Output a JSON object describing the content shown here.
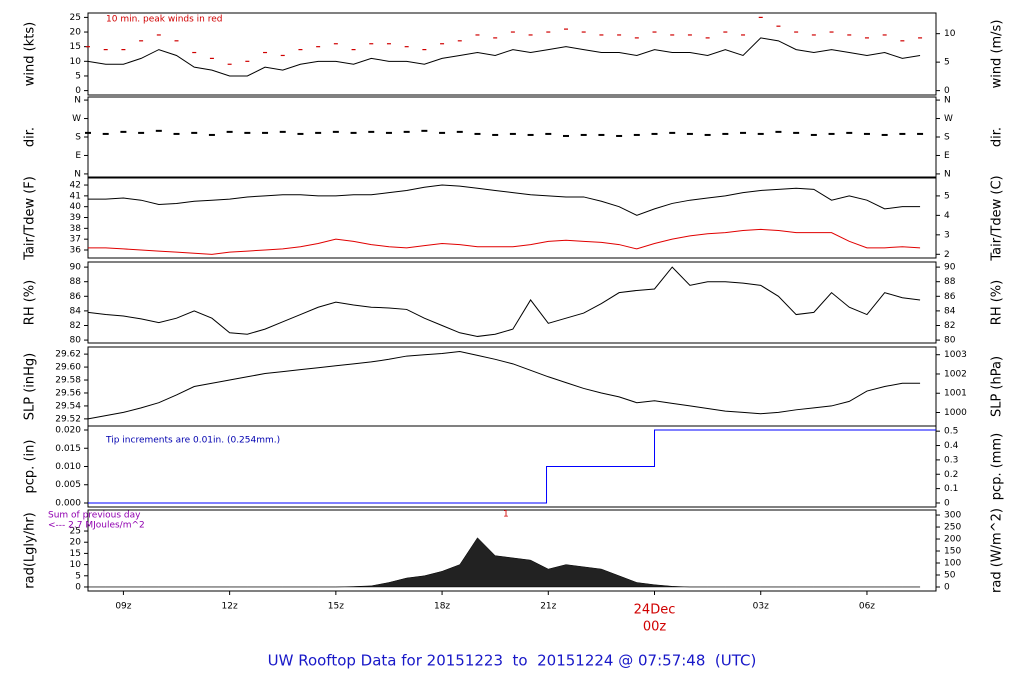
{
  "chart_data": [
    {
      "type": "line",
      "ylabel": "wind (kts)",
      "y2label": "wind (m/s)",
      "annotation": "10 min. peak winds in red",
      "annotation_color": "#d00000",
      "xlim": [
        8,
        31.95
      ],
      "ylim": [
        -1.5,
        26.5
      ],
      "yticks": [
        0,
        5,
        10,
        15,
        20,
        25
      ],
      "y2lim": [
        -0.77,
        13.63
      ],
      "y2ticks": [
        0,
        5,
        10
      ],
      "x": [
        8,
        8.5,
        9,
        9.5,
        10,
        10.5,
        11,
        11.5,
        12,
        12.5,
        13,
        13.5,
        14,
        14.5,
        15,
        15.5,
        16,
        16.5,
        17,
        17.5,
        18,
        18.5,
        19,
        19.5,
        20,
        20.5,
        21,
        21.5,
        22,
        22.5,
        23,
        23.5,
        24,
        24.5,
        25,
        25.5,
        26,
        26.5,
        27,
        27.5,
        28,
        28.5,
        29,
        29.5,
        30,
        30.5,
        31,
        31.5
      ],
      "series": [
        {
          "color": "#000000",
          "style": "line",
          "values": [
            10,
            9,
            9,
            11,
            14,
            12,
            8,
            7,
            5,
            5,
            8,
            7,
            9,
            10,
            10,
            9,
            11,
            10,
            10,
            9,
            11,
            12,
            13,
            12,
            14,
            13,
            14,
            15,
            14,
            13,
            13,
            12,
            14,
            13,
            13,
            12,
            14,
            12,
            18,
            17,
            14,
            13,
            14,
            13,
            12,
            13,
            11,
            12
          ]
        },
        {
          "color": "#d00000",
          "style": "markers",
          "values": [
            15,
            14,
            14,
            17,
            19,
            17,
            13,
            11,
            9,
            10,
            13,
            12,
            14,
            15,
            16,
            14,
            16,
            16,
            15,
            14,
            16,
            17,
            19,
            18,
            20,
            19,
            20,
            21,
            20,
            19,
            19,
            18,
            20,
            19,
            19,
            18,
            20,
            19,
            25,
            22,
            20,
            19,
            20,
            19,
            18,
            19,
            17,
            18
          ]
        }
      ]
    },
    {
      "type": "scatter",
      "ylabel": "dir.",
      "y2label": "dir.",
      "xlim": [
        8,
        31.95
      ],
      "ylim": [
        -15,
        375
      ],
      "yticks": [
        {
          "value": 0,
          "label": "N"
        },
        {
          "value": 90,
          "label": "E"
        },
        {
          "value": 180,
          "label": "S"
        },
        {
          "value": 270,
          "label": "W"
        },
        {
          "value": 360,
          "label": "N"
        }
      ],
      "y2lim": [
        -15,
        375
      ],
      "y2ticks": [
        {
          "value": 0,
          "label": "N"
        },
        {
          "value": 90,
          "label": "E"
        },
        {
          "value": 180,
          "label": "S"
        },
        {
          "value": 270,
          "label": "W"
        },
        {
          "value": 360,
          "label": "N"
        }
      ],
      "x": [
        8,
        8.5,
        9,
        9.5,
        10,
        10.5,
        11,
        11.5,
        12,
        12.5,
        13,
        13.5,
        14,
        14.5,
        15,
        15.5,
        16,
        16.5,
        17,
        17.5,
        18,
        18.5,
        19,
        19.5,
        20,
        20.5,
        21,
        21.5,
        22,
        22.5,
        23,
        23.5,
        24,
        24.5,
        25,
        25.5,
        26,
        26.5,
        27,
        27.5,
        28,
        28.5,
        29,
        29.5,
        30,
        30.5,
        31,
        31.5
      ],
      "series": [
        {
          "color": "#000000",
          "style": "points",
          "values": [
            200,
            195,
            205,
            200,
            210,
            195,
            200,
            190,
            205,
            200,
            200,
            205,
            195,
            200,
            205,
            200,
            205,
            200,
            205,
            210,
            200,
            205,
            195,
            190,
            195,
            190,
            195,
            185,
            190,
            190,
            185,
            190,
            195,
            200,
            195,
            190,
            195,
            200,
            195,
            205,
            200,
            190,
            195,
            200,
            195,
            190,
            195,
            195
          ]
        }
      ]
    },
    {
      "type": "line",
      "ylabel": "Tair/Tdew (F)",
      "y2label": "Tair/Tdew (C)",
      "xlim": [
        8,
        31.95
      ],
      "ylim": [
        35.26,
        42.65
      ],
      "yticks": [
        36,
        37,
        38,
        39,
        40,
        41,
        42
      ],
      "y2lim": [
        1.81,
        5.92
      ],
      "y2ticks": [
        2,
        3,
        4,
        5
      ],
      "x": [
        8,
        8.5,
        9,
        9.5,
        10,
        10.5,
        11,
        11.5,
        12,
        12.5,
        13,
        13.5,
        14,
        14.5,
        15,
        15.5,
        16,
        16.5,
        17,
        17.5,
        18,
        18.5,
        19,
        19.5,
        20,
        20.5,
        21,
        21.5,
        22,
        22.5,
        23,
        23.5,
        24,
        24.5,
        25,
        25.5,
        26,
        26.5,
        27,
        27.5,
        28,
        28.5,
        29,
        29.5,
        30,
        30.5,
        31,
        31.5
      ],
      "series": [
        {
          "color": "#000000",
          "style": "line",
          "values": [
            40.7,
            40.7,
            40.8,
            40.6,
            40.2,
            40.3,
            40.5,
            40.6,
            40.7,
            40.9,
            41.0,
            41.1,
            41.1,
            41.0,
            41.0,
            41.1,
            41.1,
            41.3,
            41.5,
            41.8,
            42.0,
            41.9,
            41.7,
            41.5,
            41.3,
            41.1,
            41.0,
            40.9,
            40.9,
            40.5,
            40.0,
            39.2,
            39.8,
            40.3,
            40.6,
            40.8,
            41.0,
            41.3,
            41.5,
            41.6,
            41.7,
            41.6,
            40.6,
            41.0,
            40.6,
            39.8,
            40.0,
            40.0
          ]
        },
        {
          "color": "#e00000",
          "style": "line",
          "values": [
            36.2,
            36.2,
            36.1,
            36.0,
            35.9,
            35.8,
            35.7,
            35.6,
            35.8,
            35.9,
            36.0,
            36.1,
            36.3,
            36.6,
            37.0,
            36.8,
            36.5,
            36.3,
            36.2,
            36.4,
            36.6,
            36.5,
            36.3,
            36.3,
            36.3,
            36.5,
            36.8,
            36.9,
            36.8,
            36.7,
            36.5,
            36.1,
            36.6,
            37.0,
            37.3,
            37.5,
            37.6,
            37.8,
            37.9,
            37.8,
            37.6,
            37.6,
            37.6,
            36.8,
            36.2,
            36.2,
            36.3,
            36.2
          ]
        }
      ]
    },
    {
      "type": "line",
      "ylabel": "RH (%)",
      "y2label": "RH (%)",
      "xlim": [
        8,
        31.95
      ],
      "ylim": [
        79.6,
        90.7
      ],
      "yticks": [
        80,
        82,
        84,
        86,
        88,
        90
      ],
      "y2lim": [
        79.6,
        90.7
      ],
      "y2ticks": [
        80,
        82,
        84,
        86,
        88,
        90
      ],
      "x": [
        8,
        8.5,
        9,
        9.5,
        10,
        10.5,
        11,
        11.5,
        12,
        12.5,
        13,
        13.5,
        14,
        14.5,
        15,
        15.5,
        16,
        16.5,
        17,
        17.5,
        18,
        18.5,
        19,
        19.5,
        20,
        20.5,
        21,
        21.5,
        22,
        22.5,
        23,
        23.5,
        24,
        24.5,
        25,
        25.5,
        26,
        26.5,
        27,
        27.5,
        28,
        28.5,
        29,
        29.5,
        30,
        30.5,
        31,
        31.5
      ],
      "series": [
        {
          "color": "#000000",
          "style": "line",
          "values": [
            83.8,
            83.5,
            83.3,
            82.9,
            82.4,
            83.0,
            84.0,
            83.0,
            81.0,
            80.8,
            81.5,
            82.5,
            83.5,
            84.5,
            85.2,
            84.8,
            84.5,
            84.4,
            84.2,
            83.0,
            82.0,
            81.0,
            80.5,
            80.8,
            81.5,
            85.5,
            82.3,
            83.0,
            83.7,
            85.0,
            86.5,
            86.8,
            87.0,
            90.0,
            87.5,
            88.0,
            88.0,
            87.8,
            87.5,
            86.0,
            83.5,
            83.8,
            86.5,
            84.5,
            83.5,
            86.5,
            85.8,
            85.5
          ]
        }
      ]
    },
    {
      "type": "line",
      "ylabel": "SLP (inHg)",
      "y2label": "SLP (hPa)",
      "xlim": [
        8,
        31.95
      ],
      "ylim": [
        29.509,
        29.631
      ],
      "yticks": [
        29.52,
        29.54,
        29.56,
        29.58,
        {
          "value": 29.6,
          "label": "29.60"
        },
        29.62
      ],
      "y2lim": [
        999.3,
        1003.4
      ],
      "y2ticks": [
        1000,
        1001,
        1002,
        1003
      ],
      "x": [
        8,
        8.5,
        9,
        9.5,
        10,
        10.5,
        11,
        11.5,
        12,
        12.5,
        13,
        13.5,
        14,
        14.5,
        15,
        15.5,
        16,
        16.5,
        17,
        17.5,
        18,
        18.5,
        19,
        19.5,
        20,
        20.5,
        21,
        21.5,
        22,
        22.5,
        23,
        23.5,
        24,
        24.5,
        25,
        25.5,
        26,
        26.5,
        27,
        27.5,
        28,
        28.5,
        29,
        29.5,
        30,
        30.5,
        31,
        31.5
      ],
      "series": [
        {
          "color": "#000000",
          "style": "line",
          "values": [
            29.52,
            29.525,
            29.53,
            29.537,
            29.545,
            29.557,
            29.57,
            29.575,
            29.58,
            29.585,
            29.59,
            29.593,
            29.596,
            29.599,
            29.602,
            29.605,
            29.608,
            29.612,
            29.617,
            29.619,
            29.621,
            29.624,
            29.618,
            29.612,
            29.605,
            29.595,
            29.585,
            29.576,
            29.567,
            29.56,
            29.554,
            29.545,
            29.548,
            29.544,
            29.54,
            29.536,
            29.532,
            29.53,
            29.528,
            29.53,
            29.534,
            29.537,
            29.54,
            29.547,
            29.563,
            29.57,
            29.575,
            29.575
          ]
        }
      ]
    },
    {
      "type": "step",
      "ylabel": "pcp. (in)",
      "y2label": "pcp. (mm)",
      "annotation": "Tip increments are 0.01in. (0.254mm.)",
      "annotation_color": "#0000b0",
      "xlim": [
        8,
        31.95
      ],
      "ylim": [
        -0.0011,
        0.0211
      ],
      "yticks": [
        {
          "value": 0,
          "label": "0.000"
        },
        {
          "value": 0.005,
          "label": "0.005"
        },
        {
          "value": 0.01,
          "label": "0.010"
        },
        {
          "value": 0.015,
          "label": "0.015"
        },
        {
          "value": 0.02,
          "label": "0.020"
        }
      ],
      "y2lim": [
        -0.028,
        0.536
      ],
      "y2ticks": [
        0,
        0.1,
        0.2,
        0.3,
        0.4,
        0.5
      ],
      "x": [
        8,
        20.95,
        24.0
      ],
      "series": [
        {
          "color": "#0000ff",
          "style": "step",
          "values": [
            0,
            0.01,
            0.02
          ]
        }
      ]
    },
    {
      "type": "area",
      "ylabel": "rad(Lgly/hr)",
      "y2label": "rad (W/m^2)",
      "annotation": "Sum of previous day",
      "annotation2": "<--- 2.7 MJoules/m^2",
      "annotation_color": "#9000b0",
      "marker_text": "1",
      "xlim": [
        8,
        31.95
      ],
      "ylim": [
        -1.8,
        34.4
      ],
      "yticks": [
        0,
        5,
        10,
        15,
        20,
        25
      ],
      "y2lim": [
        -16.7,
        321
      ],
      "y2ticks": [
        0,
        50,
        100,
        150,
        200,
        250,
        300
      ],
      "xticks": [
        {
          "value": 9,
          "label": "09z"
        },
        {
          "value": 12,
          "label": "12z"
        },
        {
          "value": 15,
          "label": "15z"
        },
        {
          "value": 18,
          "label": "18z"
        },
        {
          "value": 21,
          "label": "21z"
        },
        {
          "value": 24,
          "label": "00z"
        },
        {
          "value": 27,
          "label": "03z"
        },
        {
          "value": 30,
          "label": "06z"
        }
      ],
      "date_label": "24Dec",
      "x": [
        8,
        8.5,
        9,
        9.5,
        10,
        10.5,
        11,
        11.5,
        12,
        12.5,
        13,
        13.5,
        14,
        14.5,
        15,
        15.5,
        16,
        16.5,
        17,
        17.5,
        18,
        18.5,
        19,
        19.5,
        20,
        20.5,
        21,
        21.5,
        22,
        22.5,
        23,
        23.5,
        24,
        24.5,
        25,
        25.5,
        26,
        26.5,
        27,
        27.5,
        28,
        28.5,
        29,
        29.5,
        30,
        30.5,
        31,
        31.5
      ],
      "series": [
        {
          "color": "#222222",
          "style": "area",
          "values": [
            0,
            0,
            0,
            0,
            0,
            0,
            0,
            0,
            0,
            0,
            0,
            0,
            0,
            0,
            0,
            0.2,
            0.5,
            2,
            4,
            5,
            7,
            10,
            22,
            14,
            13,
            12,
            8,
            10,
            9,
            8,
            5,
            2,
            1,
            0.3,
            0,
            0,
            0,
            0,
            0,
            0,
            0,
            0,
            0,
            0,
            0,
            0,
            0,
            0
          ]
        }
      ]
    }
  ],
  "footer": "UW Rooftop Data for 20151223  to  20151224 @ 07:57:48  (UTC)"
}
